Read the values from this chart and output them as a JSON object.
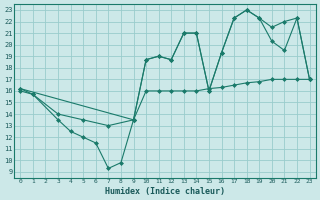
{
  "xlabel": "Humidex (Indice chaleur)",
  "bg_color": "#cce8e8",
  "grid_color": "#99cccc",
  "line_color": "#1a7a6a",
  "xlim": [
    -0.5,
    23.5
  ],
  "ylim": [
    8.5,
    23.5
  ],
  "xticks": [
    0,
    1,
    2,
    3,
    4,
    5,
    6,
    7,
    8,
    9,
    10,
    11,
    12,
    13,
    14,
    15,
    16,
    17,
    18,
    19,
    20,
    21,
    22,
    23
  ],
  "yticks": [
    9,
    10,
    11,
    12,
    13,
    14,
    15,
    16,
    17,
    18,
    19,
    20,
    21,
    22,
    23
  ],
  "line1_x": [
    0,
    1,
    3,
    4,
    5,
    6,
    7,
    8,
    9,
    10,
    11,
    12,
    13,
    14,
    15,
    16,
    17,
    18,
    19,
    20,
    21,
    22,
    23
  ],
  "line1_y": [
    16.2,
    15.7,
    13.5,
    12.5,
    12.0,
    11.5,
    9.3,
    9.8,
    13.5,
    18.7,
    19.0,
    18.7,
    21.0,
    21.0,
    16.0,
    19.3,
    22.3,
    23.0,
    22.3,
    20.3,
    19.5,
    22.3,
    17.0
  ],
  "line2_x": [
    0,
    1,
    3,
    5,
    7,
    9,
    10,
    11,
    12,
    13,
    14,
    15,
    16,
    17,
    18,
    19,
    20,
    21,
    22,
    23
  ],
  "line2_y": [
    16.0,
    15.7,
    14.0,
    13.5,
    13.0,
    13.5,
    16.0,
    16.0,
    16.0,
    16.0,
    16.0,
    16.2,
    16.3,
    16.5,
    16.7,
    16.8,
    17.0,
    17.0,
    17.0,
    17.0
  ],
  "line3_x": [
    0,
    9,
    10,
    11,
    12,
    13,
    14,
    15,
    16,
    17,
    18,
    19,
    20,
    21,
    22,
    23
  ],
  "line3_y": [
    16.2,
    13.5,
    18.7,
    19.0,
    18.7,
    21.0,
    21.0,
    16.0,
    19.3,
    22.3,
    23.0,
    22.3,
    21.5,
    22.0,
    22.3,
    17.0
  ]
}
